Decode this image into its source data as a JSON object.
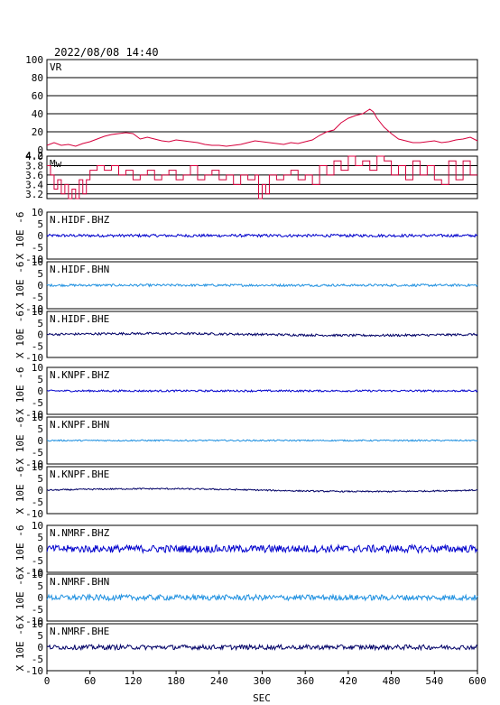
{
  "header": {
    "timestamp": "2022/08/08  14:40"
  },
  "chart_data": {
    "type": "line",
    "x_axis": {
      "label": "SEC",
      "range": [
        0,
        600
      ],
      "ticks": [
        "0",
        "60",
        "120",
        "180",
        "240",
        "300",
        "360",
        "420",
        "480",
        "540",
        "600"
      ]
    },
    "panels": [
      {
        "id": "vr",
        "label": "VR",
        "color": "#d6003c",
        "ylim": [
          0,
          100
        ],
        "yticks": [
          "0",
          "20",
          "40",
          "60",
          "80",
          "100"
        ],
        "grid": true,
        "x": [
          0,
          10,
          20,
          30,
          40,
          50,
          60,
          70,
          80,
          90,
          100,
          110,
          120,
          130,
          140,
          150,
          160,
          170,
          180,
          190,
          200,
          210,
          220,
          230,
          240,
          250,
          260,
          270,
          280,
          290,
          300,
          310,
          320,
          330,
          340,
          350,
          360,
          370,
          380,
          390,
          400,
          410,
          420,
          430,
          440,
          450,
          455,
          460,
          470,
          480,
          490,
          500,
          510,
          520,
          530,
          540,
          550,
          560,
          570,
          580,
          590,
          600
        ],
        "y": [
          5,
          8,
          5,
          6,
          4,
          7,
          9,
          12,
          15,
          17,
          18,
          19,
          18,
          12,
          14,
          12,
          10,
          9,
          11,
          10,
          9,
          8,
          6,
          5,
          5,
          4,
          5,
          6,
          8,
          10,
          9,
          8,
          7,
          6,
          8,
          7,
          9,
          11,
          16,
          20,
          22,
          30,
          35,
          38,
          40,
          45,
          42,
          35,
          25,
          18,
          12,
          10,
          8,
          8,
          9,
          10,
          8,
          9,
          11,
          12,
          14,
          10
        ]
      },
      {
        "id": "mw",
        "label": "Mw",
        "color": "#d6003c",
        "ylim": [
          3.1,
          4.0
        ],
        "yticks": [
          "3.2",
          "3.4",
          "3.6",
          "3.8",
          "4.0"
        ],
        "ytick_values": [
          3.2,
          3.4,
          3.6,
          3.8,
          4.0
        ],
        "top_label": "4.2",
        "grid": true,
        "x": [
          0,
          5,
          10,
          15,
          20,
          25,
          30,
          35,
          40,
          45,
          50,
          55,
          60,
          70,
          80,
          90,
          100,
          110,
          120,
          130,
          140,
          150,
          160,
          170,
          180,
          190,
          200,
          210,
          220,
          230,
          240,
          250,
          260,
          270,
          280,
          290,
          295,
          300,
          305,
          310,
          320,
          330,
          340,
          350,
          360,
          370,
          380,
          390,
          400,
          410,
          420,
          430,
          440,
          450,
          460,
          470,
          480,
          490,
          500,
          510,
          520,
          530,
          540,
          550,
          560,
          570,
          580,
          590,
          600
        ],
        "y": [
          3.8,
          3.6,
          3.3,
          3.5,
          3.2,
          3.4,
          3.1,
          3.3,
          3.1,
          3.5,
          3.2,
          3.5,
          3.7,
          3.8,
          3.7,
          3.8,
          3.6,
          3.7,
          3.5,
          3.6,
          3.7,
          3.5,
          3.6,
          3.7,
          3.5,
          3.6,
          3.8,
          3.5,
          3.6,
          3.7,
          3.5,
          3.6,
          3.4,
          3.6,
          3.5,
          3.6,
          3.1,
          3.4,
          3.2,
          3.6,
          3.5,
          3.6,
          3.7,
          3.5,
          3.6,
          3.4,
          3.8,
          3.6,
          3.9,
          3.7,
          4.0,
          3.8,
          3.9,
          3.7,
          4.0,
          3.9,
          3.6,
          3.8,
          3.5,
          3.9,
          3.6,
          3.8,
          3.5,
          3.4,
          3.9,
          3.5,
          3.9,
          3.6,
          3.6
        ]
      },
      {
        "id": "hidf-bhz",
        "label": "N.HIDF.BHZ",
        "color": "#0000cc",
        "amp": 0.6,
        "drift": 0.0,
        "ylim": [
          -10,
          10
        ],
        "yticks": [
          "-10",
          "-5",
          "0",
          "5",
          "10"
        ]
      },
      {
        "id": "hidf-bhn",
        "label": "N.HIDF.BHN",
        "color": "#1e90e0",
        "amp": 0.5,
        "drift": 0.0,
        "ylim": [
          -10,
          10
        ],
        "yticks": [
          "-10",
          "-5",
          "0",
          "5",
          "10"
        ]
      },
      {
        "id": "hidf-bhe",
        "label": "N.HIDF.BHE",
        "color": "#000066",
        "amp": 0.5,
        "drift": 0.4,
        "ylim": [
          -10,
          10
        ],
        "yticks": [
          "-10",
          "-5",
          "0",
          "5",
          "10"
        ]
      },
      {
        "id": "knpf-bhz",
        "label": "N.KNPF.BHZ",
        "color": "#0000cc",
        "amp": 0.4,
        "drift": 0.0,
        "ylim": [
          -10,
          10
        ],
        "yticks": [
          "-10",
          "-5",
          "0",
          "5",
          "10"
        ]
      },
      {
        "id": "knpf-bhn",
        "label": "N.KNPF.BHN",
        "color": "#1e90e0",
        "amp": 0.3,
        "drift": 0.0,
        "ylim": [
          -10,
          10
        ],
        "yticks": [
          "-10",
          "-5",
          "0",
          "5",
          "10"
        ]
      },
      {
        "id": "knpf-bhe",
        "label": "N.KNPF.BHE",
        "color": "#000066",
        "amp": 0.3,
        "drift": 0.6,
        "ylim": [
          -10,
          10
        ],
        "yticks": [
          "-10",
          "-5",
          "0",
          "5",
          "10"
        ]
      },
      {
        "id": "nmrf-bhz",
        "label": "N.NMRF.BHZ",
        "color": "#0000cc",
        "amp": 1.6,
        "drift": 0.0,
        "ylim": [
          -10,
          10
        ],
        "yticks": [
          "-10",
          "-5",
          "0",
          "5",
          "10"
        ]
      },
      {
        "id": "nmrf-bhn",
        "label": "N.NMRF.BHN",
        "color": "#1e90e0",
        "amp": 1.2,
        "drift": 0.0,
        "ylim": [
          -10,
          10
        ],
        "yticks": [
          "-10",
          "-5",
          "0",
          "5",
          "10"
        ]
      },
      {
        "id": "nmrf-bhe",
        "label": "N.NMRF.BHE",
        "color": "#000066",
        "amp": 1.0,
        "drift": 0.0,
        "ylim": [
          -10,
          10
        ],
        "yticks": [
          "-10",
          "-5",
          "0",
          "5",
          "10"
        ]
      }
    ],
    "y_axis_unit_label": "X 10E -6"
  }
}
